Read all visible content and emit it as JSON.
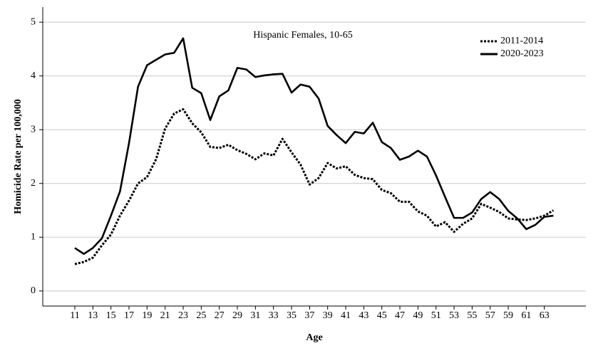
{
  "chart_data": {
    "type": "line",
    "title": "Hispanic Females, 10-65",
    "x_label": "Age",
    "y_label": "Homicide Rate per 100,000",
    "x": [
      11,
      12,
      13,
      14,
      15,
      16,
      17,
      18,
      19,
      20,
      21,
      22,
      23,
      24,
      25,
      26,
      27,
      28,
      29,
      30,
      31,
      32,
      33,
      34,
      35,
      36,
      37,
      38,
      39,
      40,
      41,
      42,
      43,
      44,
      45,
      46,
      47,
      48,
      49,
      50,
      51,
      52,
      53,
      54,
      55,
      56,
      57,
      58,
      59,
      60,
      61,
      62,
      63,
      64
    ],
    "series": [
      {
        "name": "2011-2014",
        "color": "#000000",
        "style": "dotted",
        "values": [
          0.5,
          0.54,
          0.62,
          0.85,
          1.05,
          1.4,
          1.68,
          2.0,
          2.12,
          2.45,
          3.02,
          3.3,
          3.38,
          3.12,
          2.95,
          2.68,
          2.66,
          2.72,
          2.62,
          2.55,
          2.45,
          2.56,
          2.52,
          2.83,
          2.58,
          2.35,
          1.98,
          2.1,
          2.38,
          2.28,
          2.32,
          2.16,
          2.1,
          2.08,
          1.88,
          1.82,
          1.66,
          1.66,
          1.48,
          1.4,
          1.2,
          1.28,
          1.1,
          1.25,
          1.35,
          1.62,
          1.55,
          1.47,
          1.35,
          1.33,
          1.32,
          1.35,
          1.4,
          1.5
        ]
      },
      {
        "name": "2020-2023",
        "color": "#000000",
        "style": "solid",
        "values": [
          0.8,
          0.69,
          0.8,
          0.98,
          1.4,
          1.85,
          2.75,
          3.8,
          4.2,
          4.3,
          4.4,
          4.43,
          4.7,
          3.78,
          3.68,
          3.18,
          3.62,
          3.73,
          4.15,
          4.12,
          3.98,
          4.01,
          4.03,
          4.04,
          3.69,
          3.84,
          3.8,
          3.58,
          3.07,
          2.9,
          2.75,
          2.96,
          2.93,
          3.13,
          2.77,
          2.66,
          2.44,
          2.5,
          2.61,
          2.5,
          2.15,
          1.75,
          1.36,
          1.36,
          1.46,
          1.71,
          1.84,
          1.71,
          1.49,
          1.35,
          1.15,
          1.23,
          1.38,
          1.4
        ]
      }
    ],
    "xlim": [
      7.45,
      67.6
    ],
    "xticks": [
      11,
      13,
      15,
      17,
      19,
      21,
      23,
      25,
      27,
      29,
      31,
      33,
      35,
      37,
      39,
      41,
      43,
      45,
      47,
      49,
      51,
      53,
      55,
      57,
      59,
      61,
      63
    ],
    "ylim": [
      -0.28,
      5.28
    ],
    "yticks": [
      0,
      1,
      2,
      3,
      4,
      5
    ],
    "grid": true,
    "legend": "upper right"
  }
}
